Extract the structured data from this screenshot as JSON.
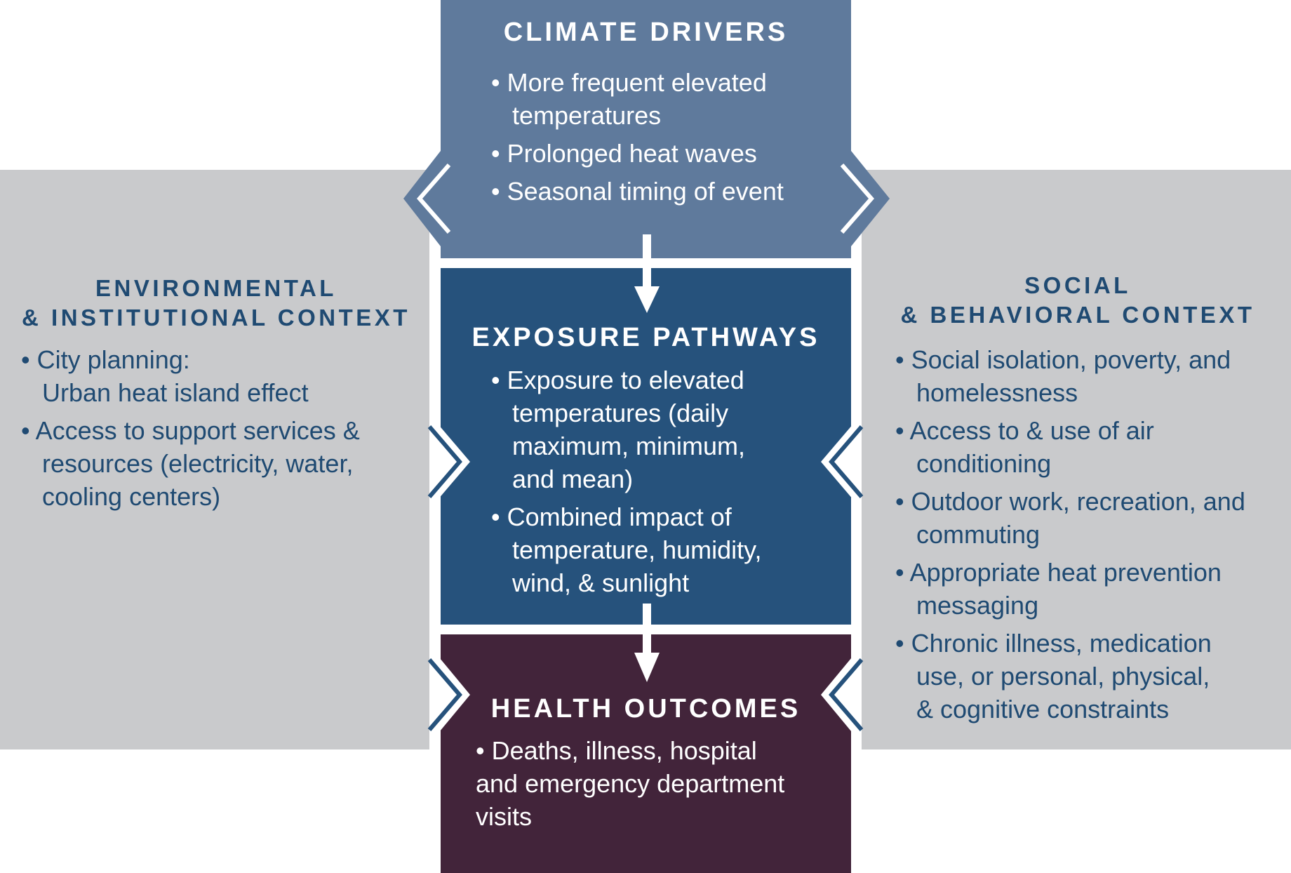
{
  "climate_drivers": {
    "title": "CLIMATE DRIVERS",
    "items": [
      [
        "• More frequent elevated",
        "temperatures"
      ],
      [
        "• Prolonged heat waves"
      ],
      [
        "• Seasonal timing of event"
      ]
    ]
  },
  "exposure_pathways": {
    "title": "EXPOSURE PATHWAYS",
    "items": [
      [
        "• Exposure to elevated",
        "temperatures (daily",
        "maximum, minimum,",
        "and mean)"
      ],
      [
        "• Combined impact of",
        "temperature, humidity,",
        "wind, & sunlight"
      ]
    ]
  },
  "health_outcomes": {
    "title": "HEALTH OUTCOMES",
    "items": [
      [
        "• Deaths, illness, hospital",
        "and emergency department",
        "visits"
      ]
    ]
  },
  "environmental_context": {
    "title_line1": "ENVIRONMENTAL",
    "title_line2": "& INSTITUTIONAL CONTEXT",
    "items": [
      [
        "• City planning:",
        "Urban heat island effect"
      ],
      [
        "• Access to support services &",
        "resources (electricity, water,",
        "cooling centers)"
      ]
    ]
  },
  "social_context": {
    "title_line1": "SOCIAL",
    "title_line2": "& BEHAVIORAL CONTEXT",
    "items": [
      [
        "• Social isolation, poverty, and",
        "homelessness"
      ],
      [
        "• Access to & use of air",
        "conditioning"
      ],
      [
        "• Outdoor work, recreation, and",
        "commuting"
      ],
      [
        "• Appropriate heat prevention",
        "messaging"
      ],
      [
        "• Chronic illness, medication",
        "use, or personal, physical,",
        "& cognitive constraints"
      ]
    ]
  },
  "colors": {
    "climate": "#5f7a9c",
    "exposure": "#26527c",
    "health": "#42243a",
    "side_band": "#c9cacc",
    "side_text": "#1f4a72"
  }
}
